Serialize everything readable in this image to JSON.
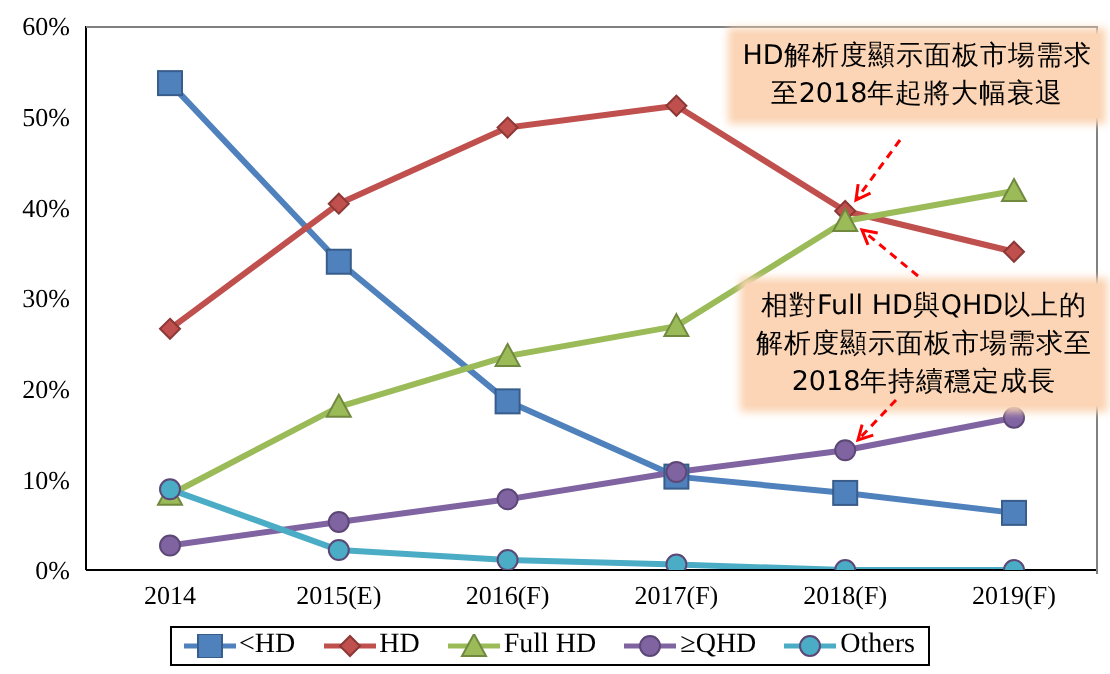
{
  "chart_data": {
    "type": "line",
    "categories": [
      "2014",
      "2015(E)",
      "2016(F)",
      "2017(F)",
      "2018(F)",
      "2019(F)"
    ],
    "series": [
      {
        "name": "<HD",
        "color": "#4f81bd",
        "marker": "square",
        "values": [
          53.7,
          34,
          18.6,
          10.3,
          8.5,
          6.3
        ]
      },
      {
        "name": "HD",
        "color": "#c0504d",
        "marker": "diamond",
        "values": [
          26.6,
          40.4,
          48.8,
          51.2,
          39.6,
          35.1
        ]
      },
      {
        "name": "Full HD",
        "color": "#9bbb59",
        "marker": "triangle",
        "values": [
          8.3,
          18,
          23.6,
          26.9,
          38.5,
          41.8
        ]
      },
      {
        "name": "≥QHD",
        "color": "#8064a2",
        "marker": "circle",
        "values": [
          2.7,
          5.3,
          7.8,
          10.8,
          13.2,
          16.8
        ]
      },
      {
        "name": "Others",
        "color": "#4bacc6",
        "marker": "circle",
        "values": [
          8.9,
          2.2,
          1.1,
          0.6,
          0,
          0
        ]
      }
    ],
    "ylim": [
      0,
      60
    ],
    "yticks": [
      {
        "value": 0,
        "label": "0%"
      },
      {
        "value": 10,
        "label": "10%"
      },
      {
        "value": 20,
        "label": "20%"
      },
      {
        "value": 30,
        "label": "30%"
      },
      {
        "value": 40,
        "label": "40%"
      },
      {
        "value": 50,
        "label": "50%"
      },
      {
        "value": 60,
        "label": "60%"
      }
    ],
    "grid": false,
    "legend": "bottom",
    "annotations": [
      "HD解析度顯示面板市場需求至2018年起將大幅衰退",
      "相對Full HD與QHD以上的解析度顯示面板市場需求至2018年持續穩定成長"
    ]
  }
}
